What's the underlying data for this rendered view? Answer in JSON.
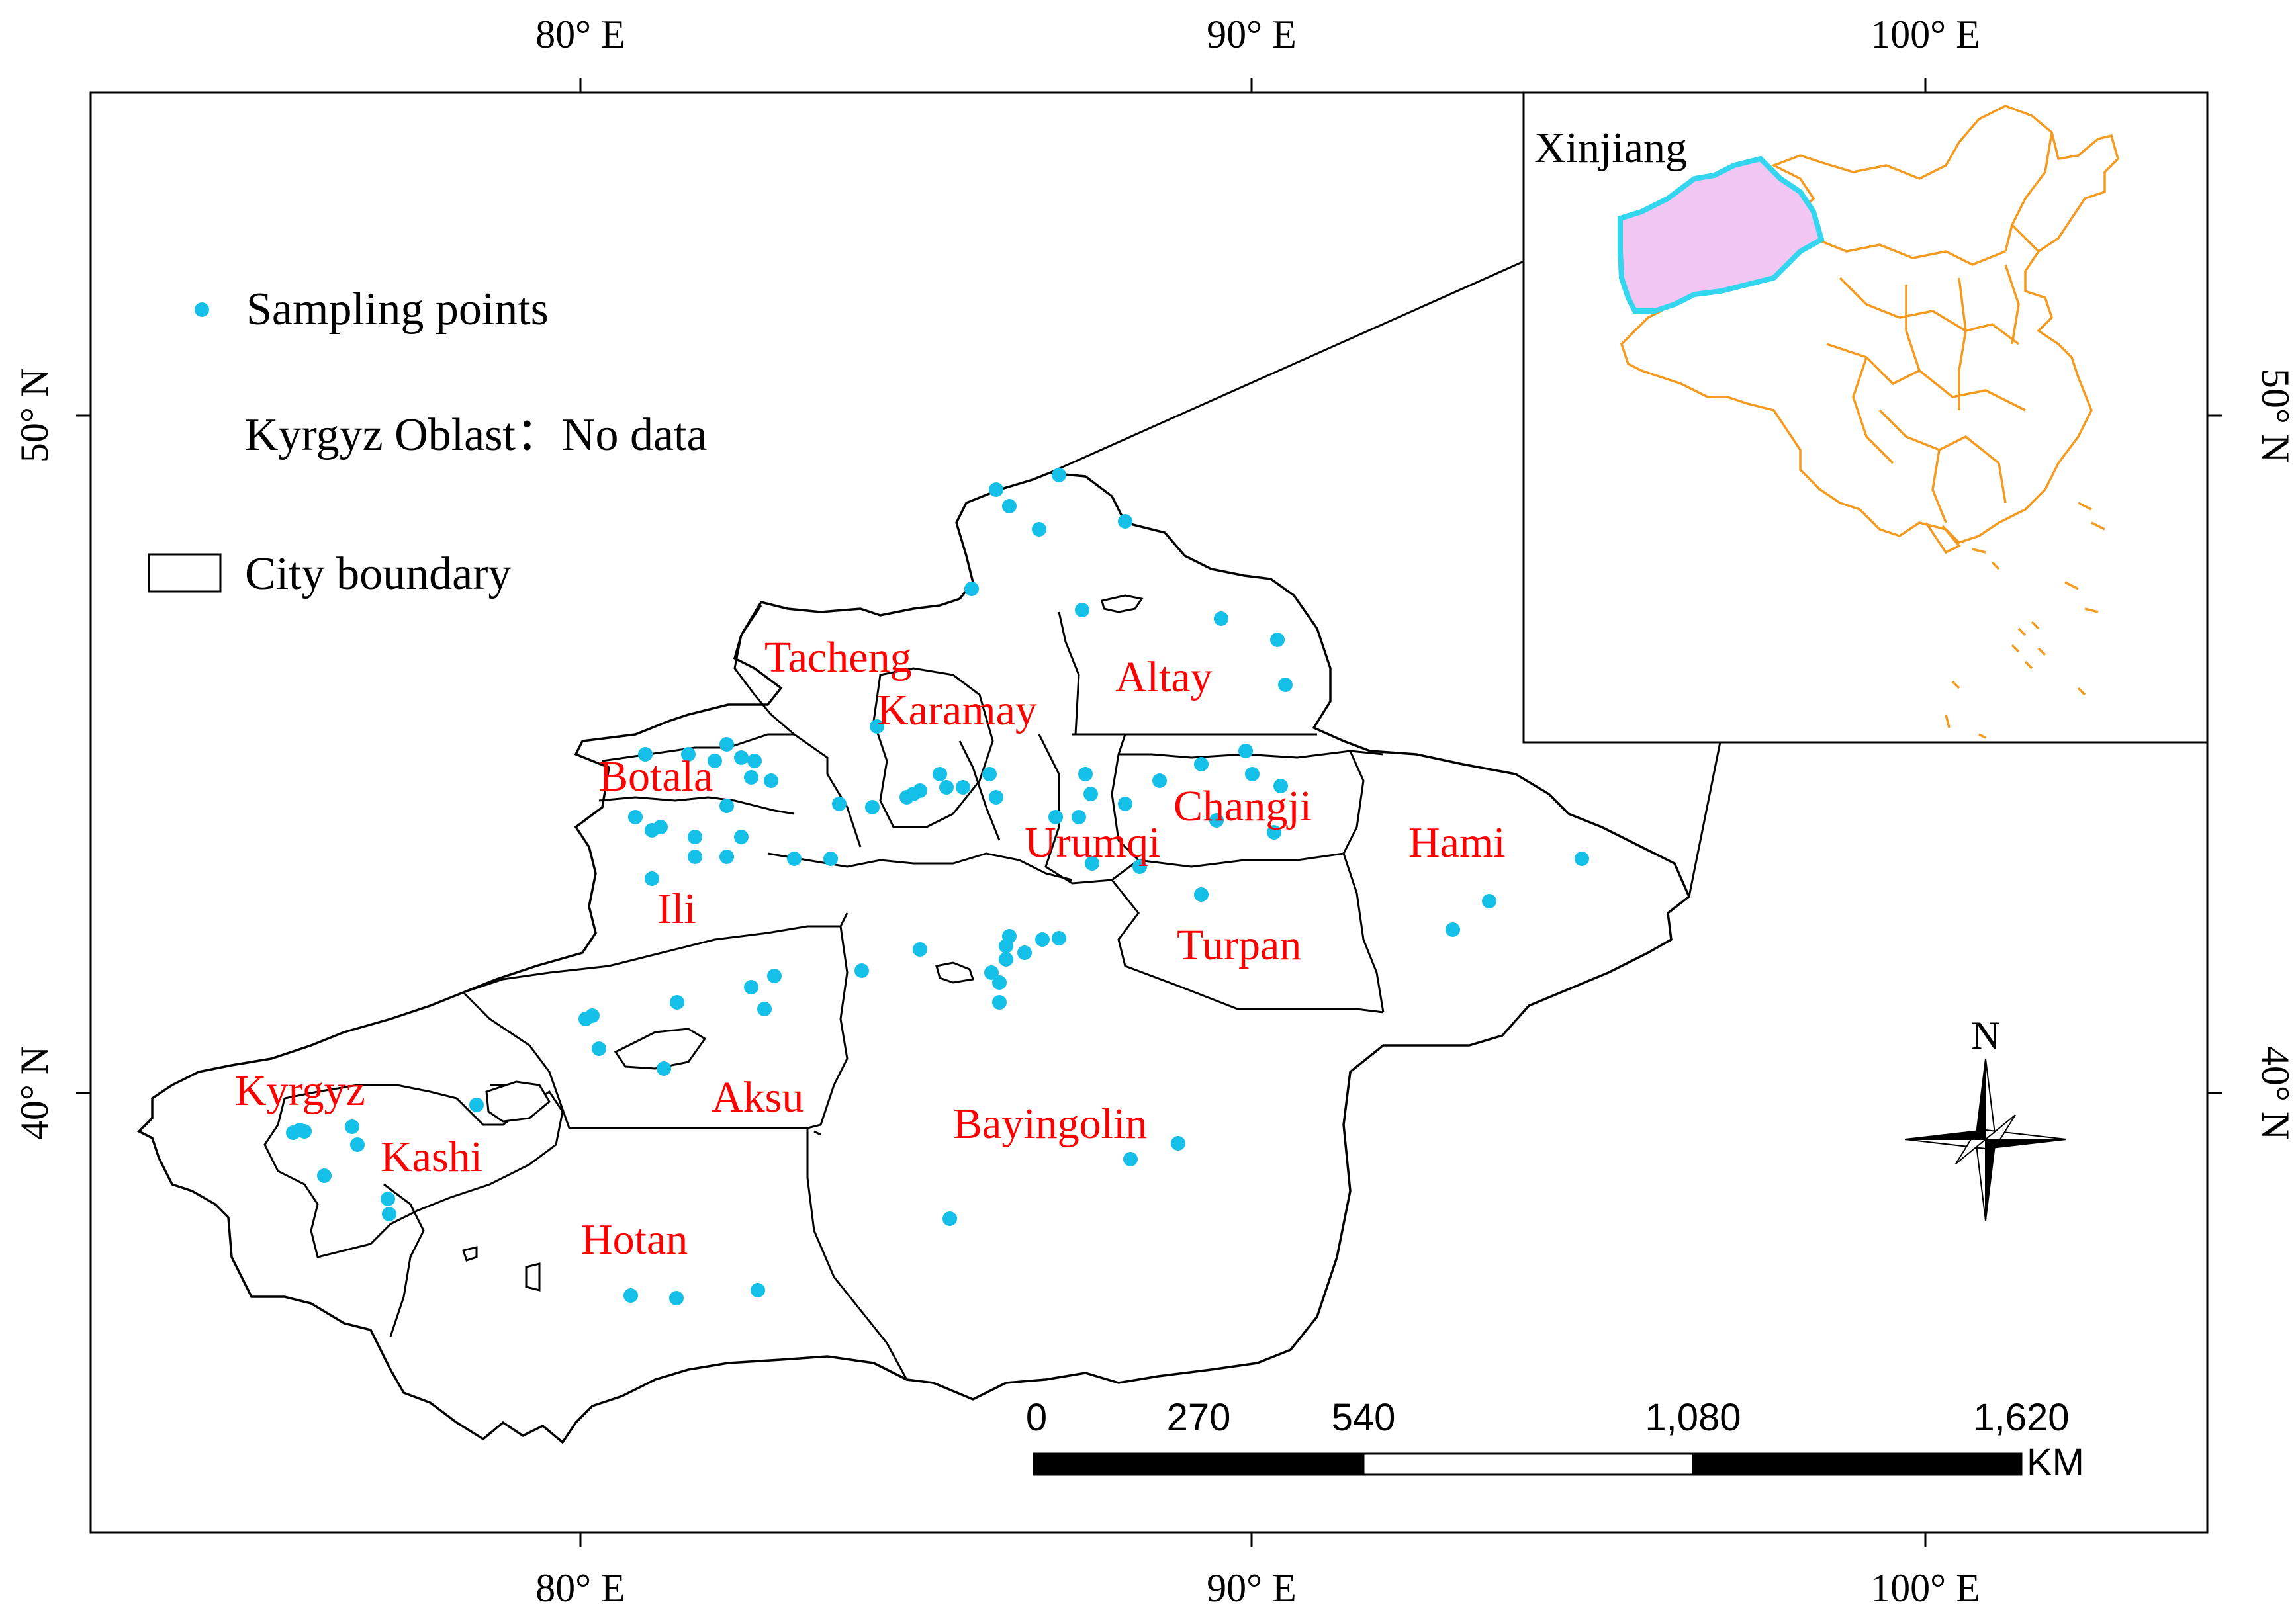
{
  "axes": {
    "longitude_ticks": [
      {
        "label": "80° E",
        "deg": 80
      },
      {
        "label": "90° E",
        "deg": 90
      },
      {
        "label": "100° E",
        "deg": 100
      }
    ],
    "latitude_ticks": [
      {
        "label": "50° N",
        "deg": 50
      },
      {
        "label": "40° N",
        "deg": 40
      }
    ]
  },
  "legend": {
    "sampling_points": "Sampling points",
    "kyrgyz_note": "Kyrgyz Oblast：No data",
    "city_boundary": "City boundary"
  },
  "cities": [
    {
      "name": "Altay"
    },
    {
      "name": "Tacheng"
    },
    {
      "name": "Karamay"
    },
    {
      "name": "Botala"
    },
    {
      "name": "Changji"
    },
    {
      "name": "Urumqi"
    },
    {
      "name": "Hami"
    },
    {
      "name": "Ili"
    },
    {
      "name": "Turpan"
    },
    {
      "name": "Aksu"
    },
    {
      "name": "Kyrgyz"
    },
    {
      "name": "Kashi"
    },
    {
      "name": "Bayingolin"
    },
    {
      "name": "Hotan"
    }
  ],
  "inset": {
    "label": "Xinjiang",
    "highlight_color": "#f2c6f2",
    "highlight_outline": "#33d6ee",
    "china_outline": "#f39a1f"
  },
  "sampling_point_color": "#14c0e8",
  "north_arrow": {
    "label": "N"
  },
  "scale_bar": {
    "labels": [
      "0",
      "270",
      "540",
      "1,080",
      "1,620"
    ],
    "unit": "KM"
  }
}
